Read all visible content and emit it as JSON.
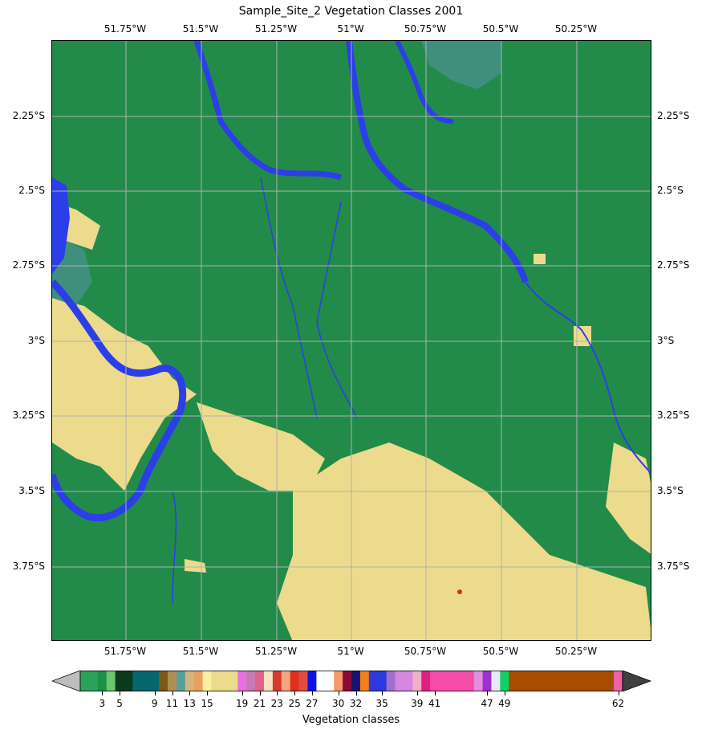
{
  "title": "Sample_Site_2 Vegetation Classes 2001",
  "lon_labels": [
    "51.75°W",
    "51.5°W",
    "51.25°W",
    "51°W",
    "50.75°W",
    "50.5°W",
    "50.25°W"
  ],
  "lat_labels": [
    "2.25°S",
    "2.5°S",
    "2.75°S",
    "3°S",
    "3.25°S",
    "3.5°S",
    "3.75°S"
  ],
  "colors": {
    "forest": "#228b4a",
    "water": "#2c3ee8",
    "cleared": "#ecdb8c",
    "flooded": "#3f8f7d",
    "urban": "#d22b2b"
  },
  "colorbar": {
    "title": "Vegetation classes",
    "tick_labels": [
      "3",
      "5",
      "9",
      "11",
      "13",
      "15",
      "19",
      "21",
      "23",
      "25",
      "27",
      "30",
      "32",
      "35",
      "39",
      "41",
      "47",
      "49",
      "62"
    ],
    "under_color": "#bdbdbd",
    "over_color": "#404040",
    "segments": [
      "#2ba25a",
      "#2ba25a",
      "#1f8e46",
      "#6dc56f",
      "#0b3b1c",
      "#0b3b1c",
      "#06676e",
      "#06676e",
      "#06676e",
      "#7f5a14",
      "#b09052",
      "#5aa09a",
      "#d6b480",
      "#e6a25c",
      "#f7f0a0",
      "#ecdb8c",
      "#ecdb8c",
      "#ecdb8c",
      "#ea6fe0",
      "#c97ab6",
      "#e0648a",
      "#f7e2c2",
      "#d93a2c",
      "#f4a57e",
      "#e0301e",
      "#e24c3e",
      "#1010e8",
      "#ffffff",
      "#ffffff",
      "#f69a6a",
      "#8a0a3c",
      "#141470",
      "#f47f1e",
      "#2a3ae0",
      "#2a3ae0",
      "#a070d0",
      "#d488e0",
      "#d488e0",
      "#f0b0c8",
      "#e02080",
      "#f44ca8",
      "#f44ca8",
      "#f44ca8",
      "#f44ca8",
      "#f44ca8",
      "#e090e0",
      "#a030d0",
      "#e8e8f8",
      "#10d06a",
      "#a84d00",
      "#a84d00",
      "#a84d00",
      "#a84d00",
      "#a84d00",
      "#a84d00",
      "#a84d00",
      "#a84d00",
      "#a84d00",
      "#a84d00",
      "#a84d00",
      "#a84d00",
      "#f061a6"
    ]
  }
}
